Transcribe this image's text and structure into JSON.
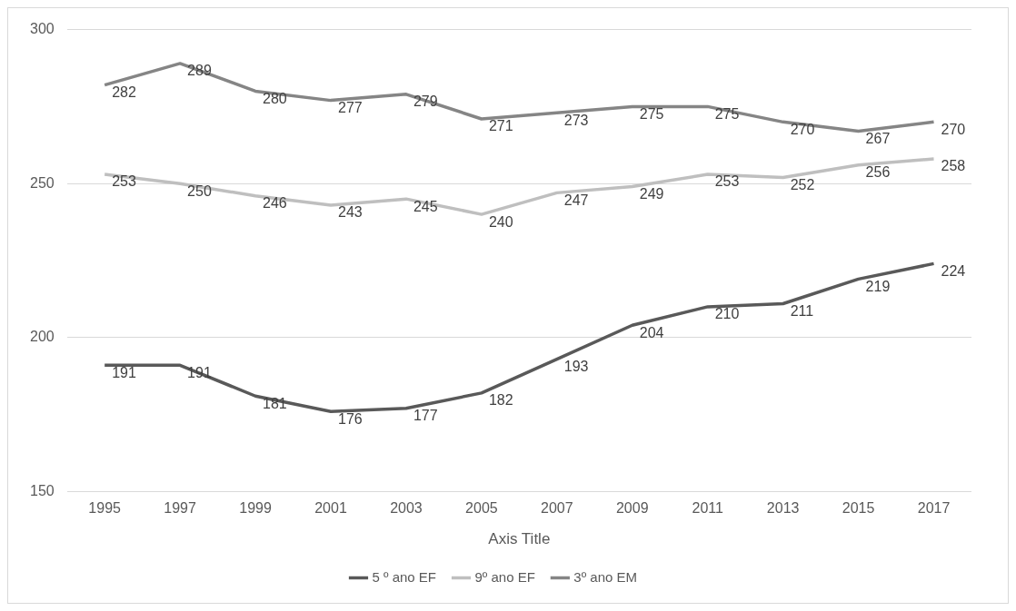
{
  "chart_data": {
    "type": "line",
    "xlabel": "Axis Title",
    "categories": [
      "1995",
      "1997",
      "1999",
      "2001",
      "2003",
      "2005",
      "2007",
      "2009",
      "2011",
      "2013",
      "2015",
      "2017"
    ],
    "series": [
      {
        "name": "5 º ano EF",
        "color": "#595959",
        "values": [
          191,
          191,
          181,
          176,
          177,
          182,
          193,
          204,
          210,
          211,
          219,
          224
        ]
      },
      {
        "name": "9º ano EF",
        "color": "#bfbfbf",
        "values": [
          253,
          250,
          246,
          243,
          245,
          240,
          247,
          249,
          253,
          252,
          256,
          258
        ]
      },
      {
        "name": "3º ano EM",
        "color": "#858585",
        "values": [
          282,
          289,
          280,
          277,
          279,
          271,
          273,
          275,
          275,
          270,
          267,
          270
        ]
      }
    ],
    "ylim": [
      150,
      300
    ],
    "yticks": [
      150,
      200,
      250,
      300
    ],
    "grid": "y",
    "legend": "bottom",
    "marker": "none",
    "line_style": "solid",
    "data_labels": true
  }
}
